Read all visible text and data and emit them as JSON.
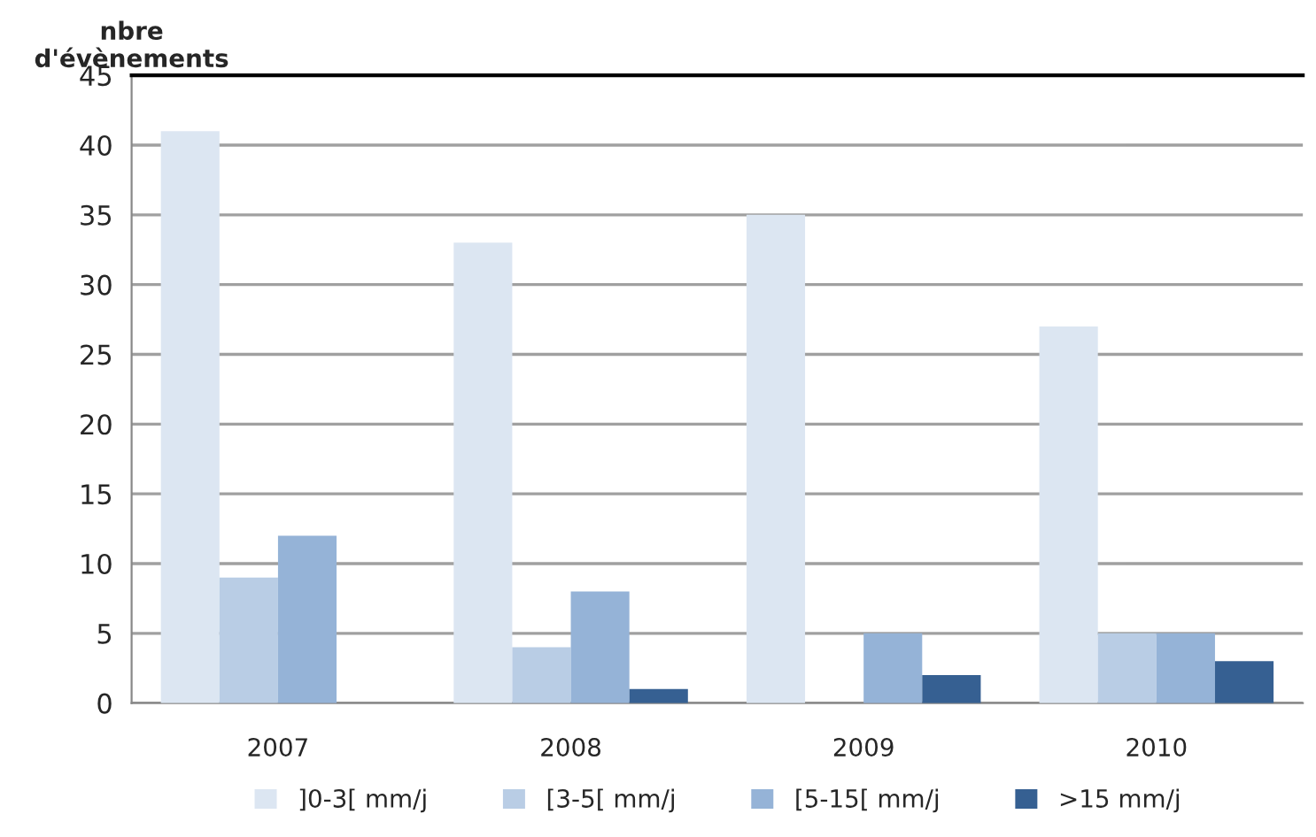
{
  "chart_data": {
    "type": "bar",
    "ylabel": "nbre\nd'évènements",
    "categories": [
      "2007",
      "2008",
      "2009",
      "2010"
    ],
    "series": [
      {
        "name": "]0-3[ mm/j",
        "color": "#dce6f2",
        "values": [
          41,
          33,
          35,
          27
        ]
      },
      {
        "name": "[3-5[ mm/j",
        "color": "#b9cde5",
        "values": [
          9,
          4,
          0,
          5
        ]
      },
      {
        "name": "[5-15[ mm/j",
        "color": "#95b3d7",
        "values": [
          12,
          8,
          5,
          5
        ]
      },
      {
        "name": ">15 mm/j",
        "color": "#366092",
        "values": [
          0,
          1,
          2,
          3
        ]
      }
    ],
    "ylim": [
      0,
      45
    ],
    "yticks": [
      0,
      5,
      10,
      15,
      20,
      25,
      30,
      35,
      40,
      45
    ],
    "grid": "y",
    "legend": "bottom"
  }
}
